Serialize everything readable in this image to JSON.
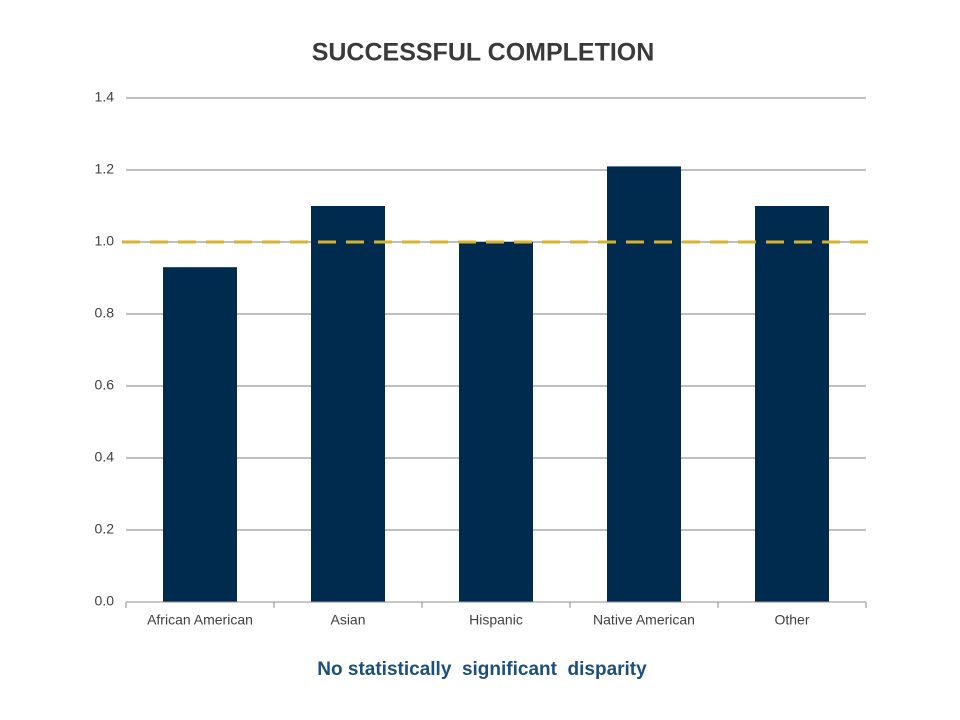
{
  "chart_data": {
    "type": "bar",
    "title": "SUCCESSFUL COMPLETION",
    "annotation": "No statistically  significant  disparity",
    "categories": [
      "African American",
      "Asian",
      "Hispanic",
      "Native American",
      "Other"
    ],
    "values": [
      0.93,
      1.1,
      1.0,
      1.21,
      1.1
    ],
    "color": "#002b4f",
    "ylim": [
      0,
      1.4
    ],
    "yticks": [
      {
        "value": 0,
        "label": "0.0"
      },
      0.2,
      0.4,
      0.6,
      0.8,
      {
        "value": 1,
        "label": "1.0"
      },
      1.2,
      1.4
    ],
    "grid": true,
    "reference_line": {
      "value": 1,
      "color": "#d9b32c"
    }
  }
}
